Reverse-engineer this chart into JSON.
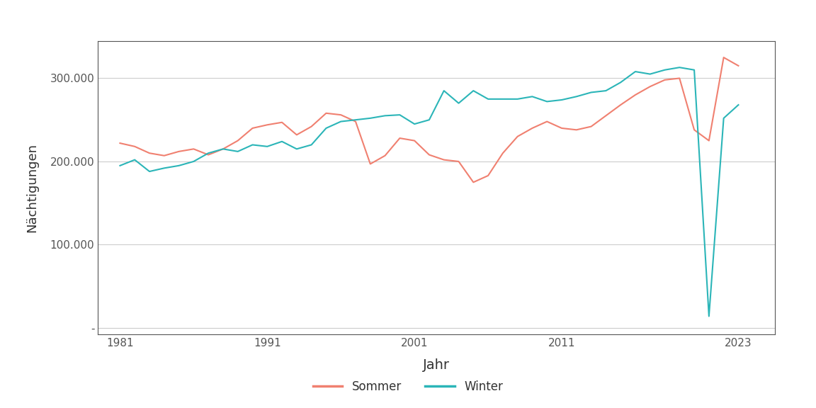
{
  "sommer_years": [
    1981,
    1982,
    1983,
    1984,
    1985,
    1986,
    1987,
    1988,
    1989,
    1990,
    1991,
    1992,
    1993,
    1994,
    1995,
    1996,
    1997,
    1998,
    1999,
    2000,
    2001,
    2002,
    2003,
    2004,
    2005,
    2006,
    2007,
    2008,
    2009,
    2010,
    2011,
    2012,
    2013,
    2014,
    2015,
    2016,
    2017,
    2018,
    2019,
    2020,
    2021,
    2022,
    2023
  ],
  "sommer_values": [
    222000,
    218000,
    210000,
    207000,
    212000,
    215000,
    208000,
    215000,
    225000,
    240000,
    244000,
    247000,
    232000,
    242000,
    258000,
    256000,
    248000,
    197000,
    207000,
    228000,
    225000,
    208000,
    202000,
    200000,
    175000,
    183000,
    210000,
    230000,
    240000,
    248000,
    240000,
    238000,
    242000,
    255000,
    268000,
    280000,
    290000,
    298000,
    300000,
    238000,
    225000,
    325000,
    315000
  ],
  "winter_years": [
    1981,
    1982,
    1983,
    1984,
    1985,
    1986,
    1987,
    1988,
    1989,
    1990,
    1991,
    1992,
    1993,
    1994,
    1995,
    1996,
    1997,
    1998,
    1999,
    2000,
    2001,
    2002,
    2003,
    2004,
    2005,
    2006,
    2007,
    2008,
    2009,
    2010,
    2011,
    2012,
    2013,
    2014,
    2015,
    2016,
    2017,
    2018,
    2019,
    2020,
    2021,
    2022,
    2023
  ],
  "winter_values": [
    195000,
    202000,
    188000,
    192000,
    195000,
    200000,
    210000,
    215000,
    212000,
    220000,
    218000,
    224000,
    215000,
    220000,
    240000,
    248000,
    250000,
    252000,
    255000,
    256000,
    245000,
    250000,
    285000,
    270000,
    285000,
    275000,
    275000,
    275000,
    278000,
    272000,
    274000,
    278000,
    283000,
    285000,
    295000,
    308000,
    305000,
    310000,
    313000,
    310000,
    14000,
    252000,
    268000
  ],
  "sommer_color": "#F08070",
  "winter_color": "#2BB5B8",
  "xlabel": "Jahr",
  "ylabel": "Nächtigungen",
  "yticks": [
    0,
    100000,
    200000,
    300000
  ],
  "ytick_labels": [
    "-",
    "100.000",
    "200.000",
    "300.000"
  ],
  "xticks": [
    1981,
    1991,
    2001,
    2011,
    2023
  ],
  "background_color": "#ffffff",
  "panel_color": "#ffffff",
  "grid_color": "#cccccc",
  "legend_sommer": "Sommer",
  "legend_winter": "Winter",
  "line_width": 1.5,
  "spine_color": "#555555",
  "tick_color": "#555555",
  "label_color": "#333333"
}
